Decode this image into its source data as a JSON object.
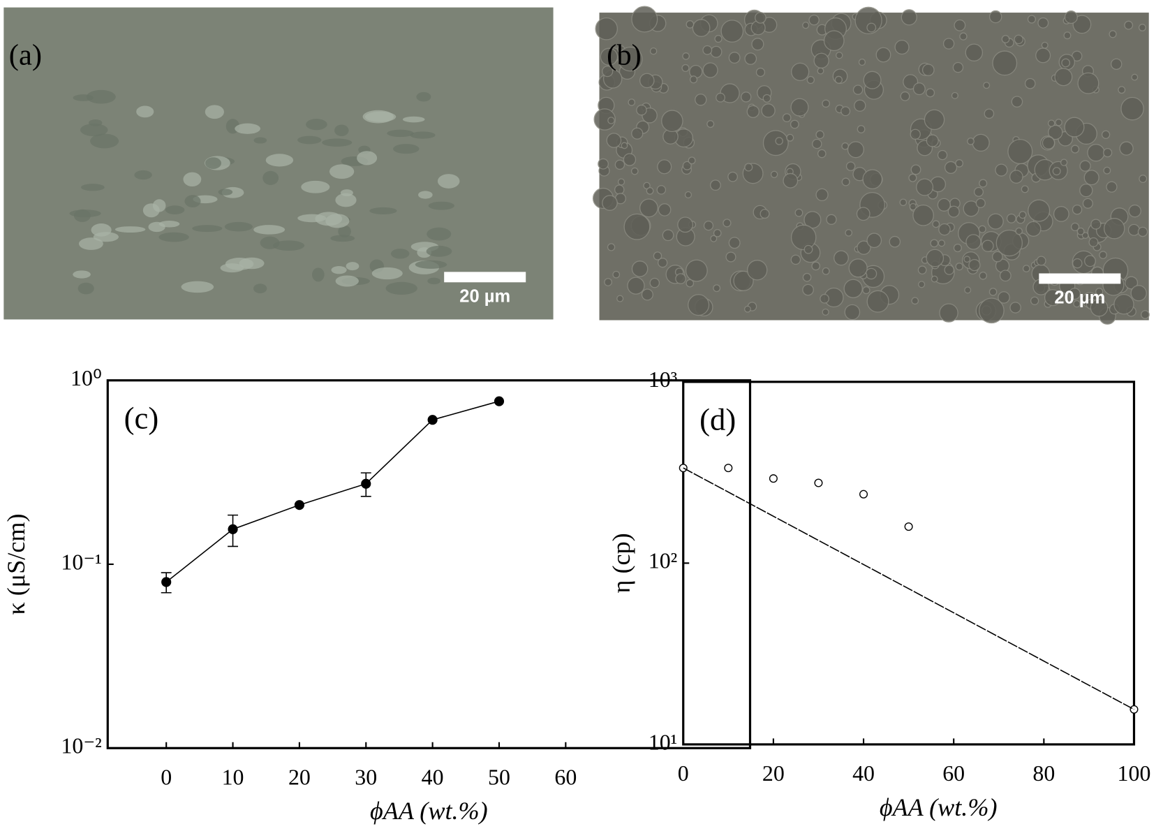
{
  "images": [
    {
      "label": "(a)",
      "scale_bar": "20 µm"
    },
    {
      "label": "(b)",
      "scale_bar": "20 µm"
    }
  ],
  "chart_data": [
    {
      "type": "line",
      "panel_label": "(c)",
      "x_label": "ϕAA (wt.%)",
      "y_label": "κ (μS/cm)",
      "log_y": true,
      "xlim": [
        -8.8,
        87.7
      ],
      "xticks": [
        0,
        10,
        20,
        30,
        40,
        50,
        60
      ],
      "ylim": [
        0.01,
        1
      ],
      "yticks": [
        {
          "value": 0.01,
          "label": "10⁻²"
        },
        {
          "value": 0.1,
          "label": "10⁻¹"
        },
        {
          "value": 1,
          "label": "10⁰"
        }
      ],
      "series": [
        {
          "color": "#000000",
          "marker": "filled-circle",
          "x": [
            0,
            10,
            20,
            30,
            40,
            50
          ],
          "values": [
            0.08,
            0.155,
            0.21,
            0.274,
            0.61,
            0.77
          ],
          "errors": [
            0.01,
            0.03,
            null,
            0.04,
            null,
            null
          ]
        }
      ]
    },
    {
      "type": "scatter",
      "panel_label": "(d)",
      "x_label": "ϕAA (wt.%)",
      "y_label": "η (cp)",
      "log_y": true,
      "xlim": [
        0,
        100
      ],
      "xticks": [
        0,
        20,
        40,
        60,
        80,
        100
      ],
      "ylim": [
        10,
        1000
      ],
      "yticks": [
        {
          "value": 10,
          "label": "10¹"
        },
        {
          "value": 100,
          "label": "10²"
        },
        {
          "value": 1000,
          "label": "10³"
        }
      ],
      "series": [
        {
          "color": "#000000",
          "marker": "open-circle",
          "x": [
            0,
            10,
            20,
            30,
            40,
            50,
            100
          ],
          "values": [
            335,
            335,
            293,
            277,
            240,
            159,
            15.6
          ]
        },
        {
          "color": "#000000",
          "marker": "none",
          "style": "dashed",
          "x": [
            0,
            100
          ],
          "values": [
            335,
            15.6
          ]
        }
      ]
    }
  ]
}
